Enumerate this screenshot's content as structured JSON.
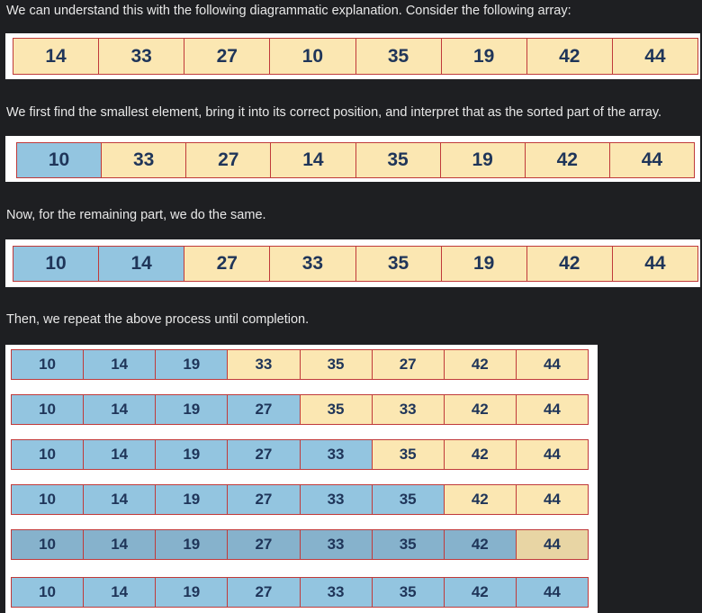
{
  "texts": {
    "intro": "We can understand this with the following diagrammatic explanation. Consider the following array:",
    "first": "We first find the smallest element, bring it into its correct position, and interpret that as the sorted part of the array.",
    "remaining": "Now, for the remaining part, we do the same.",
    "repeat": "Then, we repeat the above process until completion."
  },
  "colors": {
    "sorted": "#93c5e0",
    "unsorted": "#fbe7b2",
    "border": "#c03a3a",
    "digit": "#1f3559"
  },
  "arrays": {
    "initial": {
      "values": [
        "14",
        "33",
        "27",
        "10",
        "35",
        "19",
        "42",
        "44"
      ],
      "sorted_count": 0
    },
    "step1": {
      "values": [
        "10",
        "33",
        "27",
        "14",
        "35",
        "19",
        "42",
        "44"
      ],
      "sorted_count": 1
    },
    "step2": {
      "values": [
        "10",
        "14",
        "27",
        "33",
        "35",
        "19",
        "42",
        "44"
      ],
      "sorted_count": 2
    },
    "steps": [
      {
        "values": [
          "10",
          "14",
          "19",
          "33",
          "35",
          "27",
          "42",
          "44"
        ],
        "sorted_count": 3
      },
      {
        "values": [
          "10",
          "14",
          "19",
          "27",
          "35",
          "33",
          "42",
          "44"
        ],
        "sorted_count": 4
      },
      {
        "values": [
          "10",
          "14",
          "19",
          "27",
          "33",
          "35",
          "42",
          "44"
        ],
        "sorted_count": 5
      },
      {
        "values": [
          "10",
          "14",
          "19",
          "27",
          "33",
          "35",
          "42",
          "44"
        ],
        "sorted_count": 6
      },
      {
        "values": [
          "10",
          "14",
          "19",
          "27",
          "33",
          "35",
          "42",
          "44"
        ],
        "sorted_count": 7
      },
      {
        "values": [
          "10",
          "14",
          "19",
          "27",
          "33",
          "35",
          "42",
          "44"
        ],
        "sorted_count": 8
      }
    ]
  }
}
